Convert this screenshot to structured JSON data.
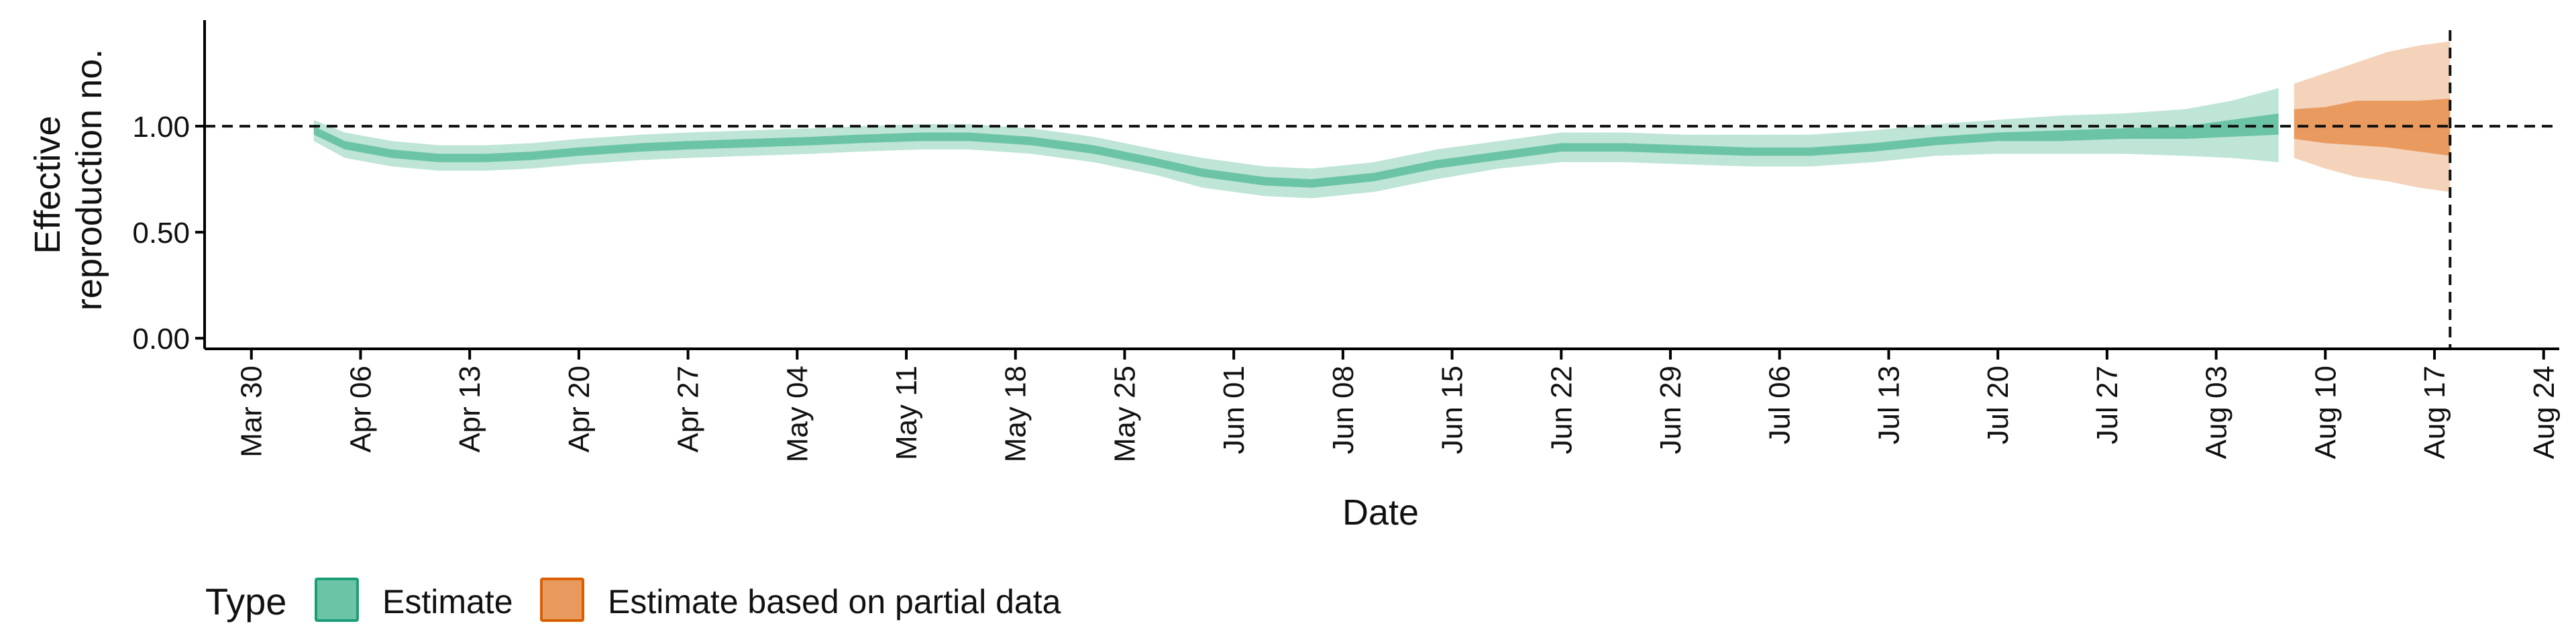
{
  "chart_data": {
    "type": "area",
    "title": "",
    "xlabel": "Date",
    "ylabel_lines": [
      "Effective",
      "reproduction no."
    ],
    "y_ticks": [
      "0.00",
      "0.50",
      "1.00"
    ],
    "x_ticks": [
      "Mar 30",
      "Apr 06",
      "Apr 13",
      "Apr 20",
      "Apr 27",
      "May 04",
      "May 11",
      "May 18",
      "May 25",
      "Jun 01",
      "Jun 08",
      "Jun 15",
      "Jun 22",
      "Jun 29",
      "Jul 06",
      "Jul 13",
      "Jul 20",
      "Jul 27",
      "Aug 03",
      "Aug 10",
      "Aug 17",
      "Aug 24"
    ],
    "xlim": [
      "Mar 27",
      "Aug 25"
    ],
    "ylim": [
      -0.05,
      1.5
    ],
    "reference_line": 1.0,
    "vertical_line": "Aug 18",
    "legend": {
      "title": "Type",
      "placement": "bottom-left",
      "items": [
        "Estimate",
        "Estimate based on partial data"
      ]
    },
    "colors": {
      "estimate_inner": "#6cc4a6",
      "estimate_outer": "#bfe5d7",
      "estimate_border": "#1b9e77",
      "partial_inner": "#e99a5f",
      "partial_outer": "#f5d3ba",
      "partial_border": "#d95f02",
      "axis": "#000000"
    },
    "series": [
      {
        "name": "Estimate",
        "x": [
          "Apr 03",
          "Apr 05",
          "Apr 08",
          "Apr 11",
          "Apr 14",
          "Apr 17",
          "Apr 20",
          "Apr 24",
          "Apr 27",
          "May 01",
          "May 05",
          "May 08",
          "May 12",
          "May 15",
          "May 19",
          "May 23",
          "May 27",
          "May 30",
          "Jun 03",
          "Jun 06",
          "Jun 10",
          "Jun 14",
          "Jun 18",
          "Jun 22",
          "Jun 26",
          "Jun 30",
          "Jul 04",
          "Jul 08",
          "Jul 12",
          "Jul 16",
          "Jul 20",
          "Jul 24",
          "Jul 28",
          "Aug 01",
          "Aug 04",
          "Aug 07"
        ],
        "y": [
          0.98,
          0.91,
          0.87,
          0.85,
          0.85,
          0.86,
          0.88,
          0.9,
          0.91,
          0.92,
          0.93,
          0.94,
          0.95,
          0.95,
          0.93,
          0.89,
          0.83,
          0.78,
          0.74,
          0.73,
          0.76,
          0.82,
          0.86,
          0.9,
          0.9,
          0.89,
          0.88,
          0.88,
          0.9,
          0.93,
          0.95,
          0.96,
          0.97,
          0.97,
          0.99,
          1.01
        ],
        "lower": [
          0.93,
          0.85,
          0.81,
          0.79,
          0.79,
          0.8,
          0.82,
          0.84,
          0.85,
          0.86,
          0.87,
          0.88,
          0.89,
          0.89,
          0.87,
          0.83,
          0.77,
          0.71,
          0.67,
          0.66,
          0.69,
          0.75,
          0.8,
          0.83,
          0.83,
          0.82,
          0.81,
          0.81,
          0.83,
          0.86,
          0.87,
          0.87,
          0.87,
          0.86,
          0.85,
          0.83
        ],
        "upper": [
          1.03,
          0.97,
          0.93,
          0.91,
          0.91,
          0.92,
          0.94,
          0.96,
          0.97,
          0.98,
          0.99,
          1.0,
          1.01,
          1.01,
          0.99,
          0.95,
          0.89,
          0.85,
          0.81,
          0.8,
          0.83,
          0.89,
          0.93,
          0.97,
          0.97,
          0.96,
          0.96,
          0.96,
          0.98,
          1.01,
          1.03,
          1.05,
          1.06,
          1.08,
          1.12,
          1.18
        ],
        "inner_lower": [
          0.96,
          0.89,
          0.85,
          0.83,
          0.83,
          0.84,
          0.86,
          0.88,
          0.89,
          0.9,
          0.91,
          0.92,
          0.93,
          0.93,
          0.91,
          0.87,
          0.81,
          0.76,
          0.72,
          0.71,
          0.74,
          0.8,
          0.84,
          0.88,
          0.88,
          0.87,
          0.86,
          0.86,
          0.88,
          0.91,
          0.93,
          0.93,
          0.94,
          0.94,
          0.95,
          0.96
        ],
        "inner_upper": [
          1.0,
          0.93,
          0.89,
          0.87,
          0.87,
          0.88,
          0.9,
          0.92,
          0.93,
          0.94,
          0.95,
          0.96,
          0.97,
          0.97,
          0.95,
          0.91,
          0.85,
          0.8,
          0.76,
          0.75,
          0.78,
          0.84,
          0.88,
          0.92,
          0.92,
          0.91,
          0.9,
          0.9,
          0.92,
          0.95,
          0.97,
          0.98,
          0.99,
          1.0,
          1.03,
          1.06
        ]
      },
      {
        "name": "Estimate based on partial data",
        "x": [
          "Aug 08",
          "Aug 10",
          "Aug 12",
          "Aug 14",
          "Aug 16",
          "Aug 18"
        ],
        "y": [
          1.01,
          1.0,
          1.02,
          1.01,
          1.0,
          1.0
        ],
        "lower": [
          0.85,
          0.8,
          0.76,
          0.74,
          0.71,
          0.69
        ],
        "upper": [
          1.2,
          1.25,
          1.3,
          1.35,
          1.38,
          1.4
        ],
        "inner_lower": [
          0.94,
          0.92,
          0.91,
          0.9,
          0.88,
          0.86
        ],
        "inner_upper": [
          1.08,
          1.09,
          1.12,
          1.12,
          1.12,
          1.13
        ]
      }
    ]
  }
}
